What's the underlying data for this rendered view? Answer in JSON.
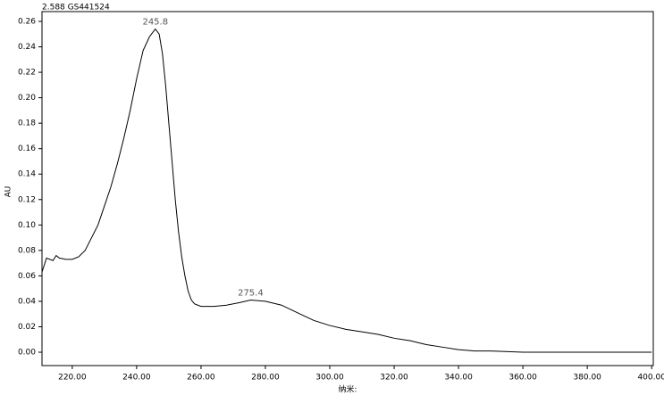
{
  "chart_data": {
    "type": "line",
    "title": "2.588 GS441524",
    "x_label": "纳米:",
    "y_label": "AU",
    "x": [
      210.6,
      212,
      214,
      215,
      216,
      218,
      220,
      222,
      224,
      226,
      228,
      230,
      232,
      234,
      236,
      238,
      240,
      242,
      244,
      245.8,
      247,
      248,
      249,
      250,
      251,
      252,
      253,
      254,
      255,
      256,
      257,
      258,
      260,
      264,
      268,
      272,
      275.4,
      280,
      285,
      290,
      295,
      300,
      305,
      310,
      315,
      320,
      325,
      330,
      335,
      340,
      345,
      350,
      360,
      380,
      400
    ],
    "series": [
      {
        "color": "#000000",
        "values": [
          0.063,
          0.074,
          0.072,
          0.076,
          0.074,
          0.073,
          0.073,
          0.075,
          0.08,
          0.09,
          0.1,
          0.115,
          0.13,
          0.148,
          0.168,
          0.19,
          0.215,
          0.237,
          0.248,
          0.254,
          0.25,
          0.235,
          0.21,
          0.18,
          0.15,
          0.12,
          0.095,
          0.075,
          0.06,
          0.048,
          0.041,
          0.038,
          0.036,
          0.036,
          0.037,
          0.039,
          0.041,
          0.04,
          0.037,
          0.031,
          0.025,
          0.021,
          0.018,
          0.016,
          0.014,
          0.011,
          0.009,
          0.006,
          0.004,
          0.002,
          0.001,
          0.001,
          0.0,
          0.0,
          0.0
        ]
      }
    ],
    "annotations": [
      {
        "label": "245.8",
        "x": 245.8,
        "y": 0.254
      },
      {
        "label": "275.4",
        "x": 275.4,
        "y": 0.041
      }
    ],
    "xlim": [
      210.6,
      400.5
    ],
    "ylim": [
      -0.0105,
      0.2677
    ],
    "xticks": [
      {
        "value": 220,
        "label": "220.00"
      },
      {
        "value": 240,
        "label": "240.00"
      },
      {
        "value": 260,
        "label": "260.00"
      },
      {
        "value": 280,
        "label": "280.00"
      },
      {
        "value": 300,
        "label": "300.00"
      },
      {
        "value": 320,
        "label": "320.00"
      },
      {
        "value": 340,
        "label": "340.00"
      },
      {
        "value": 360,
        "label": "360.00"
      },
      {
        "value": 380,
        "label": "380.00"
      },
      {
        "value": 400,
        "label": "400.00"
      }
    ],
    "yticks": [
      {
        "value": 0,
        "label": "0.00"
      },
      {
        "value": 0.02,
        "label": "0.02"
      },
      {
        "value": 0.04,
        "label": "0.04"
      },
      {
        "value": 0.06,
        "label": "0.06"
      },
      {
        "value": 0.08,
        "label": "0.08"
      },
      {
        "value": 0.1,
        "label": "0.10"
      },
      {
        "value": 0.12,
        "label": "0.12"
      },
      {
        "value": 0.14,
        "label": "0.14"
      },
      {
        "value": 0.16,
        "label": "0.16"
      },
      {
        "value": 0.18,
        "label": "0.18"
      },
      {
        "value": 0.2,
        "label": "0.20"
      },
      {
        "value": 0.22,
        "label": "0.22"
      },
      {
        "value": 0.24,
        "label": "0.24"
      },
      {
        "value": 0.26,
        "label": "0.26"
      }
    ],
    "grid": false
  }
}
